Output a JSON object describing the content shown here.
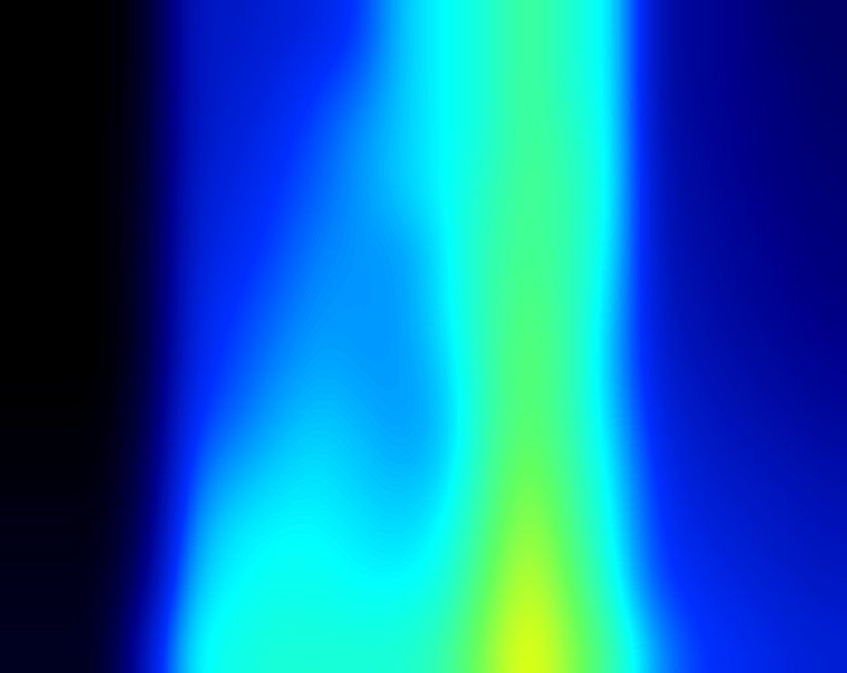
{
  "chart_data": {
    "type": "heatmap",
    "tick_labels": false,
    "cells": [
      [
        0,
        0,
        0,
        0.5,
        3,
        3,
        3.3,
        3.5,
        4,
        5.5,
        6,
        6.5,
        7.5,
        6.5,
        6,
        2.5,
        2.2,
        2,
        1.5,
        1.5
      ],
      [
        0,
        0,
        0,
        0.5,
        3,
        3.2,
        3.5,
        4,
        4.5,
        5.5,
        6,
        6.5,
        7.5,
        6.5,
        6,
        2.5,
        2.2,
        2,
        1.8,
        1.5
      ],
      [
        0,
        0,
        0,
        0.6,
        3,
        3.3,
        3.8,
        4.3,
        5,
        5.5,
        6,
        6.5,
        7.5,
        6.8,
        6,
        2.6,
        2.3,
        2,
        1.8,
        1.6
      ],
      [
        0,
        0,
        0,
        0.6,
        3.2,
        3.5,
        4,
        4.5,
        5,
        5.5,
        6,
        6.8,
        7.5,
        7,
        6,
        2.7,
        2.4,
        2.1,
        1.9,
        1.7
      ],
      [
        0,
        0,
        0,
        0.7,
        3.3,
        3.7,
        4.2,
        4.8,
        5,
        5,
        5.8,
        7,
        7.5,
        7,
        5.8,
        2.8,
        2.5,
        2.2,
        2,
        1.8
      ],
      [
        0,
        0,
        0,
        0.7,
        3.5,
        4,
        4.5,
        5,
        5,
        5,
        5.8,
        7,
        7.8,
        7,
        5.5,
        3,
        2.6,
        2.3,
        2.1,
        1.9
      ],
      [
        0,
        0,
        0,
        0.8,
        3.6,
        4.2,
        4.8,
        5.2,
        5,
        5,
        5.5,
        7,
        8,
        7,
        5.3,
        3.2,
        2.8,
        2.5,
        2.3,
        2.1
      ],
      [
        0.1,
        0.1,
        0.1,
        1,
        4,
        4.5,
        5.2,
        5.5,
        5.3,
        5,
        5.3,
        7,
        8,
        7,
        5.5,
        3.5,
        3,
        2.7,
        2.5,
        2.3
      ],
      [
        0.2,
        0.2,
        0.2,
        1.2,
        4.5,
        5.2,
        5.6,
        5.8,
        5.5,
        5.3,
        5.5,
        7.2,
        8.5,
        7.2,
        5.8,
        3.8,
        3.2,
        3,
        2.8,
        2.6
      ],
      [
        0.3,
        0.3,
        0.3,
        1.5,
        5,
        5.8,
        6,
        6,
        5.8,
        5.6,
        6,
        7.5,
        9,
        7.5,
        6,
        4,
        3.5,
        3.2,
        3,
        2.8
      ],
      [
        0.4,
        0.4,
        0.4,
        2,
        5.5,
        6,
        6.2,
        6.2,
        6,
        6,
        6.3,
        8,
        9.5,
        8,
        6.3,
        4.2,
        3.8,
        3.5,
        3.2,
        3
      ],
      [
        0.5,
        0.5,
        0.5,
        3,
        6,
        6.3,
        6.5,
        6.5,
        6.5,
        6.5,
        7,
        8.5,
        10,
        8.5,
        7,
        5,
        4,
        3.8,
        3.5,
        3.3
      ]
    ]
  }
}
